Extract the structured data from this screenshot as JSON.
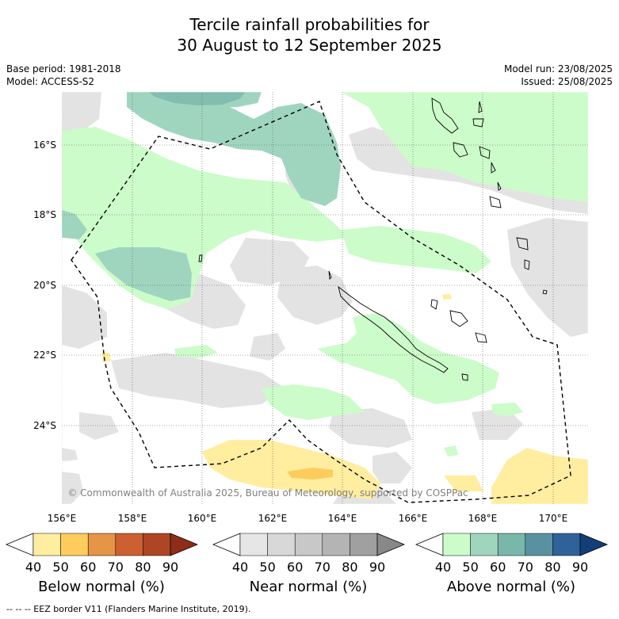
{
  "title": {
    "line1": "Tercile rainfall probabilities for",
    "line2": "30 August to 12 September 2025"
  },
  "info": {
    "base_period": "Base period: 1981-2018",
    "model": "Model: ACCESS-S2",
    "model_run": "Model run: 23/08/2025",
    "issued": "Issued: 25/08/2025"
  },
  "map": {
    "lon_labels": [
      "156°E",
      "158°E",
      "160°E",
      "162°E",
      "164°E",
      "166°E",
      "168°E",
      "170°E"
    ],
    "lat_labels": [
      "16°S",
      "18°S",
      "20°S",
      "22°S",
      "24°S"
    ],
    "copyright": "© Commonwealth of Australia 2025, Bureau of Meteorology, supported by COSPPac"
  },
  "legend": {
    "below": {
      "label": "Below normal (%)",
      "ticks": [
        "40",
        "50",
        "60",
        "70",
        "80",
        "90"
      ],
      "colors": [
        "#ffffff",
        "#ffeda0",
        "#fecc5c",
        "#e69446",
        "#cc6031",
        "#ae4626",
        "#8f2d17"
      ]
    },
    "near": {
      "label": "Near normal (%)",
      "ticks": [
        "40",
        "50",
        "60",
        "70",
        "80",
        "90"
      ],
      "colors": [
        "#ffffff",
        "#e6e6e6",
        "#d8d8d8",
        "#c8c8c8",
        "#b4b4b4",
        "#a0a0a0",
        "#888888"
      ]
    },
    "above": {
      "label": "Above normal (%)",
      "ticks": [
        "40",
        "50",
        "60",
        "70",
        "80",
        "90"
      ],
      "colors": [
        "#ffffff",
        "#ccfcca",
        "#9fd5bf",
        "#7ab7ab",
        "#5a91a1",
        "#2f6299",
        "#123f7a"
      ]
    }
  },
  "footnote": "--  --  -- EEZ border V11 (Flanders Marine Institute, 2019)."
}
